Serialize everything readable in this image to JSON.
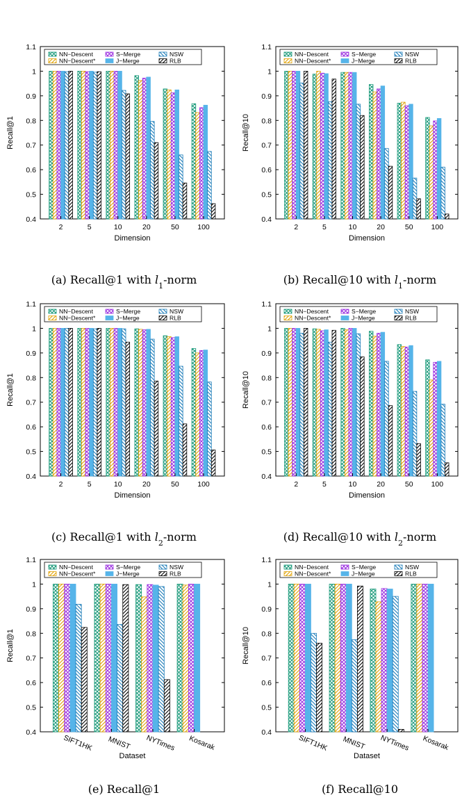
{
  "legend": [
    "NN−Descent",
    "NN−Descent*",
    "S−Merge",
    "J−Merge",
    "NSW",
    "RLB"
  ],
  "styles": [
    {
      "color": "#1a9a7a",
      "pattern": "cross"
    },
    {
      "color": "#e0a000",
      "pattern": "hatch"
    },
    {
      "color": "#9b2fe0",
      "pattern": "cross"
    },
    {
      "color": "#56b4e9",
      "pattern": "solid"
    },
    {
      "color": "#1a7bb8",
      "pattern": "hatch"
    },
    {
      "color": "#000000",
      "pattern": "hatch"
    }
  ],
  "chart_data": [
    {
      "id": "a",
      "type": "bar",
      "caption_pre": "(a)  Recall@1 with ",
      "caption_var": "l",
      "caption_sub": "1",
      "caption_post": "-norm",
      "ylabel": "Recall@1",
      "xlabel": "Dimension",
      "ylim": [
        0.4,
        1.1
      ],
      "yticks": [
        "0.4",
        "0.5",
        "0.6",
        "0.7",
        "0.8",
        "0.9",
        "1",
        "1.1"
      ],
      "categories": [
        "2",
        "5",
        "10",
        "20",
        "50",
        "100"
      ],
      "rotate": false,
      "series": [
        {
          "name": "NN−Descent",
          "values": [
            1.0,
            1.0,
            1.0,
            0.982,
            0.928,
            0.868
          ]
        },
        {
          "name": "NN−Descent*",
          "values": [
            1.0,
            1.0,
            1.0,
            0.962,
            0.924,
            0.832
          ]
        },
        {
          "name": "S−Merge",
          "values": [
            1.0,
            0.998,
            1.0,
            0.972,
            0.912,
            0.852
          ]
        },
        {
          "name": "J−Merge",
          "values": [
            1.0,
            1.0,
            1.0,
            0.976,
            0.924,
            0.862
          ]
        },
        {
          "name": "NSW",
          "values": [
            0.998,
            0.996,
            0.922,
            0.796,
            0.66,
            0.674
          ]
        },
        {
          "name": "RLB",
          "values": [
            1.0,
            0.998,
            0.908,
            0.71,
            0.546,
            0.462
          ]
        }
      ]
    },
    {
      "id": "b",
      "type": "bar",
      "caption_pre": "(b)  Recall@10 with ",
      "caption_var": "l",
      "caption_sub": "1",
      "caption_post": "-norm",
      "ylabel": "Recall@10",
      "xlabel": "Dimension",
      "ylim": [
        0.4,
        1.1
      ],
      "yticks": [
        "0.4",
        "0.5",
        "0.6",
        "0.7",
        "0.8",
        "0.9",
        "1",
        "1.1"
      ],
      "categories": [
        "2",
        "5",
        "10",
        "20",
        "50",
        "100"
      ],
      "rotate": false,
      "series": [
        {
          "name": "NN−Descent",
          "values": [
            1.0,
            0.988,
            0.995,
            0.946,
            0.87,
            0.812
          ]
        },
        {
          "name": "NN−Descent*",
          "values": [
            1.0,
            1.0,
            0.995,
            0.916,
            0.874,
            0.778
          ]
        },
        {
          "name": "S−Merge",
          "values": [
            1.0,
            0.992,
            0.995,
            0.928,
            0.86,
            0.798
          ]
        },
        {
          "name": "J−Merge",
          "values": [
            1.0,
            0.99,
            0.995,
            0.94,
            0.866,
            0.808
          ]
        },
        {
          "name": "NSW",
          "values": [
            0.952,
            0.876,
            0.866,
            0.686,
            0.566,
            0.61
          ]
        },
        {
          "name": "RLB",
          "values": [
            1.0,
            0.968,
            0.82,
            0.614,
            0.482,
            0.42
          ]
        }
      ]
    },
    {
      "id": "c",
      "type": "bar",
      "caption_pre": "(c)  Recall@1 with ",
      "caption_var": "l",
      "caption_sub": "2",
      "caption_post": "-norm",
      "ylabel": "Recall@1",
      "xlabel": "Dimension",
      "ylim": [
        0.4,
        1.1
      ],
      "yticks": [
        "0.4",
        "0.5",
        "0.6",
        "0.7",
        "0.8",
        "0.9",
        "1",
        "1.1"
      ],
      "categories": [
        "2",
        "5",
        "10",
        "20",
        "50",
        "100"
      ],
      "rotate": false,
      "series": [
        {
          "name": "NN−Descent",
          "values": [
            1.0,
            1.0,
            1.0,
            0.998,
            0.97,
            0.918
          ]
        },
        {
          "name": "NN−Descent*",
          "values": [
            1.0,
            1.0,
            1.0,
            0.996,
            0.966,
            0.9
          ]
        },
        {
          "name": "S−Merge",
          "values": [
            1.0,
            1.0,
            1.0,
            0.994,
            0.962,
            0.91
          ]
        },
        {
          "name": "J−Merge",
          "values": [
            1.0,
            1.0,
            1.0,
            0.996,
            0.966,
            0.912
          ]
        },
        {
          "name": "NSW",
          "values": [
            1.0,
            0.998,
            0.998,
            0.956,
            0.846,
            0.782
          ]
        },
        {
          "name": "RLB",
          "values": [
            1.0,
            1.0,
            0.944,
            0.786,
            0.612,
            0.506
          ]
        }
      ]
    },
    {
      "id": "d",
      "type": "bar",
      "caption_pre": "(d)  Recall@10 with ",
      "caption_var": "l",
      "caption_sub": "2",
      "caption_post": "-norm",
      "ylabel": "Recall@10",
      "xlabel": "Dimension",
      "ylim": [
        0.4,
        1.1
      ],
      "yticks": [
        "0.4",
        "0.5",
        "0.6",
        "0.7",
        "0.8",
        "0.9",
        "1",
        "1.1"
      ],
      "categories": [
        "2",
        "5",
        "10",
        "20",
        "50",
        "100"
      ],
      "rotate": false,
      "series": [
        {
          "name": "NN−Descent",
          "values": [
            1.0,
            0.998,
            1.0,
            0.988,
            0.934,
            0.872
          ]
        },
        {
          "name": "NN−Descent*",
          "values": [
            1.0,
            0.996,
            0.994,
            0.968,
            0.926,
            0.79
          ]
        },
        {
          "name": "S−Merge",
          "values": [
            1.0,
            0.99,
            1.0,
            0.98,
            0.924,
            0.862
          ]
        },
        {
          "name": "J−Merge",
          "values": [
            1.0,
            0.994,
            1.0,
            0.984,
            0.93,
            0.866
          ]
        },
        {
          "name": "NSW",
          "values": [
            0.98,
            0.944,
            0.978,
            0.866,
            0.744,
            0.692
          ]
        },
        {
          "name": "RLB",
          "values": [
            1.0,
            0.992,
            0.884,
            0.686,
            0.532,
            0.454
          ]
        }
      ]
    },
    {
      "id": "e",
      "type": "bar",
      "caption_pre": "(e)  Recall@1",
      "caption_var": "",
      "caption_sub": "",
      "caption_post": "",
      "ylabel": "Recall@1",
      "xlabel": "Dataset",
      "ylim": [
        0.4,
        1.1
      ],
      "yticks": [
        "0.4",
        "0.5",
        "0.6",
        "0.7",
        "0.8",
        "0.9",
        "1",
        "1.1"
      ],
      "categories": [
        "SIFT1HK",
        "MNIST",
        "NYTimes",
        "Kosarak"
      ],
      "rotate": true,
      "series": [
        {
          "name": "NN−Descent",
          "values": [
            1.0,
            1.0,
            0.998,
            1.0
          ]
        },
        {
          "name": "NN−Descent*",
          "values": [
            1.0,
            1.0,
            0.948,
            0.996
          ]
        },
        {
          "name": "S−Merge",
          "values": [
            1.0,
            1.0,
            0.998,
            1.0
          ]
        },
        {
          "name": "J−Merge",
          "values": [
            1.0,
            1.0,
            0.996,
            1.0
          ]
        },
        {
          "name": "NSW",
          "values": [
            0.918,
            0.836,
            0.99,
            null
          ]
        },
        {
          "name": "RLB",
          "values": [
            0.824,
            0.998,
            0.612,
            null
          ]
        }
      ]
    },
    {
      "id": "f",
      "type": "bar",
      "caption_pre": "(f)  Recall@10",
      "caption_var": "",
      "caption_sub": "",
      "caption_post": "",
      "ylabel": "Recall@10",
      "xlabel": "Dataset",
      "ylim": [
        0.4,
        1.1
      ],
      "yticks": [
        "0.4",
        "0.5",
        "0.6",
        "0.7",
        "0.8",
        "0.9",
        "1",
        "1.1"
      ],
      "categories": [
        "SIFT1HK",
        "MNIST",
        "NYTimes",
        "Kosarak"
      ],
      "rotate": true,
      "series": [
        {
          "name": "NN−Descent",
          "values": [
            1.0,
            1.0,
            0.98,
            1.0
          ]
        },
        {
          "name": "NN−Descent*",
          "values": [
            1.0,
            1.0,
            0.928,
            1.0
          ]
        },
        {
          "name": "S−Merge",
          "values": [
            1.0,
            1.0,
            0.982,
            1.0
          ]
        },
        {
          "name": "J−Merge",
          "values": [
            1.0,
            1.0,
            0.98,
            1.0
          ]
        },
        {
          "name": "NSW",
          "values": [
            0.8,
            0.774,
            0.95,
            null
          ]
        },
        {
          "name": "RLB",
          "values": [
            0.76,
            0.992,
            0.41,
            null
          ]
        }
      ]
    }
  ]
}
